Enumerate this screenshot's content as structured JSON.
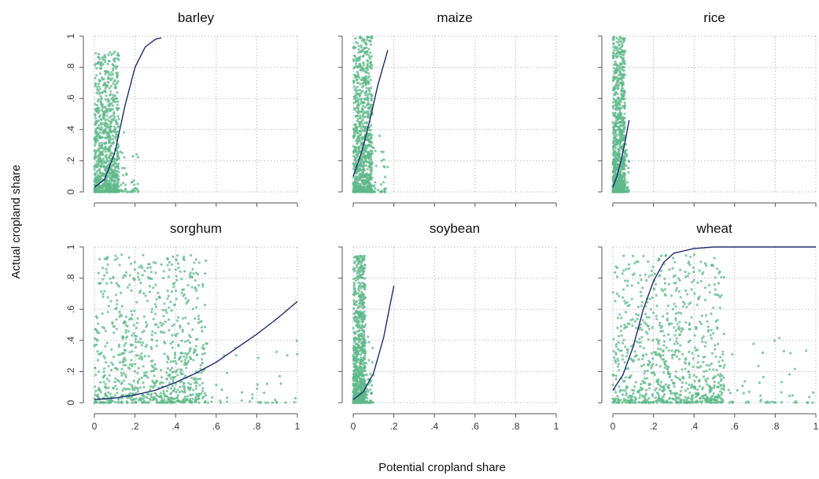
{
  "figure": {
    "ylabel": "Actual cropland share",
    "xlabel": "Potential cropland share",
    "colors": {
      "points": "#5fb88a",
      "fit": "#1f2a6e"
    }
  },
  "chart_data": [
    {
      "type": "scatter",
      "title": "barley",
      "xlim": [
        0,
        1
      ],
      "ylim": [
        0,
        1
      ],
      "xticks": [
        "0",
        ".2",
        ".4",
        ".6",
        ".8",
        "1"
      ],
      "yticks": [
        "0",
        ".2",
        ".4",
        ".6",
        ".8",
        "1"
      ],
      "points": {
        "x_range": [
          0,
          0.22
        ],
        "y_range": [
          0,
          0.9
        ],
        "concentration": "x 0.01–0.1, y 0–0.5"
      },
      "fit": {
        "x": [
          0,
          0.05,
          0.1,
          0.15,
          0.2,
          0.25,
          0.3,
          0.33
        ],
        "y": [
          0.03,
          0.08,
          0.25,
          0.55,
          0.8,
          0.93,
          0.98,
          0.99
        ]
      }
    },
    {
      "type": "scatter",
      "title": "maize",
      "xlim": [
        0,
        1
      ],
      "ylim": [
        0,
        1
      ],
      "xticks": [
        "0",
        ".2",
        ".4",
        ".6",
        ".8",
        "1"
      ],
      "yticks": [
        "0",
        ".2",
        ".4",
        ".6",
        ".8",
        "1"
      ],
      "points": {
        "x_range": [
          0,
          0.17
        ],
        "y_range": [
          0,
          1
        ],
        "concentration": "x 0–0.1, y 0–1"
      },
      "fit": {
        "x": [
          0,
          0.04,
          0.08,
          0.12,
          0.17
        ],
        "y": [
          0.1,
          0.25,
          0.45,
          0.68,
          0.91
        ]
      }
    },
    {
      "type": "scatter",
      "title": "rice",
      "xlim": [
        0,
        1
      ],
      "ylim": [
        0,
        1
      ],
      "xticks": [
        "0",
        ".2",
        ".4",
        ".6",
        ".8",
        "1"
      ],
      "yticks": [
        "0",
        ".2",
        ".4",
        ".6",
        ".8",
        "1"
      ],
      "points": {
        "x_range": [
          0,
          0.08
        ],
        "y_range": [
          0,
          1
        ],
        "concentration": "x 0–0.07, y 0–1"
      },
      "fit": {
        "x": [
          0,
          0.02,
          0.04,
          0.06,
          0.08
        ],
        "y": [
          0.03,
          0.1,
          0.2,
          0.32,
          0.46
        ]
      }
    },
    {
      "type": "scatter",
      "title": "sorghum",
      "xlim": [
        0,
        1
      ],
      "ylim": [
        0,
        1
      ],
      "xticks": [
        "0",
        ".2",
        ".4",
        ".6",
        ".8",
        "1"
      ],
      "yticks": [
        "0",
        ".2",
        ".4",
        ".6",
        ".8",
        "1"
      ],
      "points": {
        "x_range": [
          0,
          1
        ],
        "y_range": [
          0,
          0.95
        ],
        "concentration": "x 0–0.25, y 0–0.5"
      },
      "fit": {
        "x": [
          0,
          0.1,
          0.2,
          0.3,
          0.4,
          0.5,
          0.6,
          0.7,
          0.8,
          0.9,
          1.0
        ],
        "y": [
          0.02,
          0.03,
          0.05,
          0.08,
          0.13,
          0.19,
          0.26,
          0.35,
          0.44,
          0.54,
          0.65
        ]
      }
    },
    {
      "type": "scatter",
      "title": "soybean",
      "xlim": [
        0,
        1
      ],
      "ylim": [
        0,
        1
      ],
      "xticks": [
        "0",
        ".2",
        ".4",
        ".6",
        ".8",
        "1"
      ],
      "yticks": [
        "0",
        ".2",
        ".4",
        ".6",
        ".8",
        "1"
      ],
      "points": {
        "x_range": [
          0,
          0.1
        ],
        "y_range": [
          0,
          0.95
        ],
        "concentration": "x 0.02–0.08, y 0–0.85"
      },
      "fit": {
        "x": [
          0,
          0.05,
          0.1,
          0.15,
          0.2
        ],
        "y": [
          0.02,
          0.07,
          0.19,
          0.42,
          0.75
        ]
      }
    },
    {
      "type": "scatter",
      "title": "wheat",
      "xlim": [
        0,
        1
      ],
      "ylim": [
        0,
        1
      ],
      "xticks": [
        "0",
        ".2",
        ".4",
        ".6",
        ".8",
        "1"
      ],
      "yticks": [
        "0",
        ".2",
        ".4",
        ".6",
        ".8",
        "1"
      ],
      "points": {
        "x_range": [
          0,
          1
        ],
        "y_range": [
          0,
          0.95
        ],
        "concentration": "x 0–0.15, y 0–0.95"
      },
      "fit": {
        "x": [
          0,
          0.05,
          0.1,
          0.15,
          0.2,
          0.25,
          0.3,
          0.4,
          0.5,
          0.6,
          0.8,
          1.0
        ],
        "y": [
          0.08,
          0.18,
          0.36,
          0.6,
          0.78,
          0.9,
          0.96,
          0.99,
          1.0,
          1.0,
          1.0,
          1.0
        ]
      }
    }
  ]
}
